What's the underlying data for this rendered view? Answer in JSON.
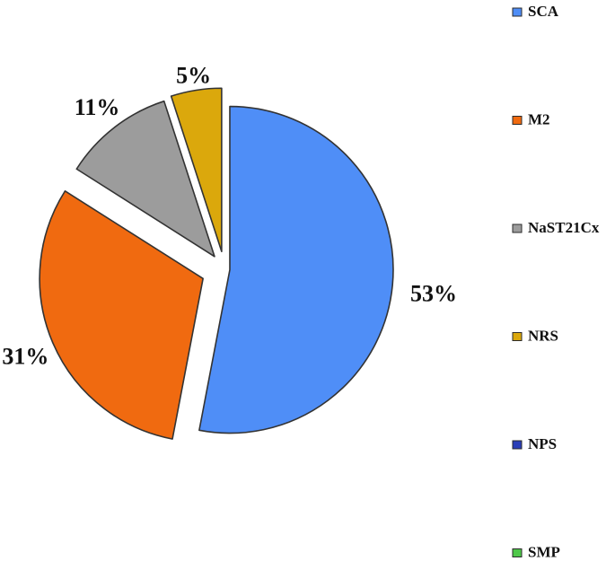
{
  "chart_data": {
    "type": "pie",
    "title": "",
    "legend_position": "right",
    "slices": [
      {
        "name": "SCA",
        "value": 53,
        "label": "53%",
        "color": "#4f8ef7"
      },
      {
        "name": "M2",
        "value": 31,
        "label": "31%",
        "color": "#f06a10"
      },
      {
        "name": "NaST21Cx",
        "value": 11,
        "label": "11%",
        "color": "#9c9c9c"
      },
      {
        "name": "NRS",
        "value": 5,
        "label": "5%",
        "color": "#dba80c"
      },
      {
        "name": "NPS",
        "value": 0,
        "label": "",
        "color": "#2a3eb8"
      },
      {
        "name": "SMP",
        "value": 0,
        "label": "",
        "color": "#4fc84a"
      }
    ]
  }
}
